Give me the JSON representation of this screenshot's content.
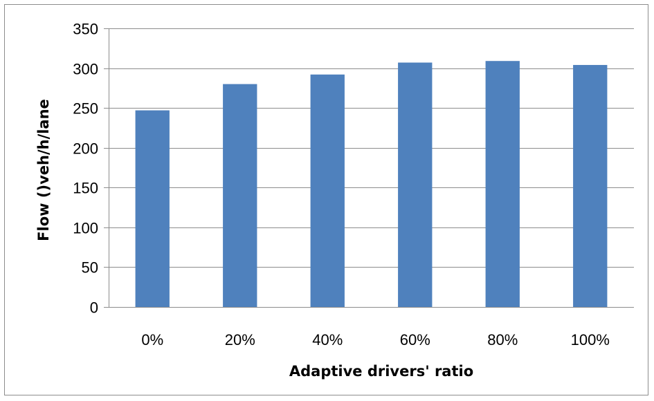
{
  "chart_data": {
    "type": "bar",
    "title": "",
    "xlabel": "Adaptive drivers' ratio",
    "ylabel": "Flow ()veh/h/lane",
    "categories": [
      "0%",
      "20%",
      "40%",
      "60%",
      "80%",
      "100%"
    ],
    "values": [
      247,
      280,
      292,
      307,
      309,
      304
    ],
    "ylim": [
      0,
      350
    ],
    "yticks": [
      0,
      50,
      100,
      150,
      200,
      250,
      300,
      350
    ],
    "grid": true,
    "legend": "none",
    "colors": {
      "bar": "#4f81bd",
      "grid": "#8c8c8c",
      "axis": "#8c8c8c"
    }
  }
}
